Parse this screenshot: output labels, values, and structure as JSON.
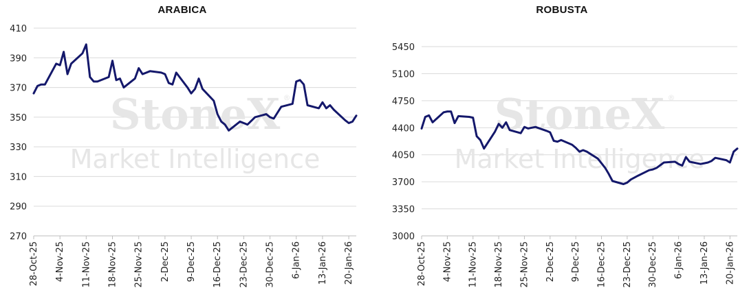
{
  "watermark": {
    "brand": "StoneX",
    "registered": "®",
    "tagline": "Market Intelligence"
  },
  "chart_data": [
    {
      "type": "line",
      "title": "ARABICA",
      "xlabel": "",
      "ylabel": "",
      "ylim": [
        270,
        410
      ],
      "yticks": [
        270,
        290,
        310,
        330,
        350,
        370,
        390,
        410
      ],
      "grid": true,
      "line_color": "#14186b",
      "xtick_labels": [
        "28-Oct-25",
        "4-Nov-25",
        "11-Nov-25",
        "18-Nov-25",
        "25-Nov-25",
        "2-Dec-25",
        "9-Dec-25",
        "16-Dec-25",
        "23-Dec-25",
        "30-Dec-25",
        "6-Jan-26",
        "13-Jan-26",
        "20-Jan-26"
      ],
      "series": [
        {
          "x": [
            "2025-10-28",
            "2025-10-29",
            "2025-10-30",
            "2025-10-31",
            "2025-11-03",
            "2025-11-04",
            "2025-11-05",
            "2025-11-06",
            "2025-11-07",
            "2025-11-10",
            "2025-11-11",
            "2025-11-12",
            "2025-11-13",
            "2025-11-14",
            "2025-11-17",
            "2025-11-18",
            "2025-11-19",
            "2025-11-20",
            "2025-11-21",
            "2025-11-24",
            "2025-11-25",
            "2025-11-26",
            "2025-11-28",
            "2025-12-01",
            "2025-12-02",
            "2025-12-03",
            "2025-12-04",
            "2025-12-05",
            "2025-12-08",
            "2025-12-09",
            "2025-12-10",
            "2025-12-11",
            "2025-12-12",
            "2025-12-15",
            "2025-12-16",
            "2025-12-17",
            "2025-12-18",
            "2025-12-19",
            "2025-12-22",
            "2025-12-23",
            "2025-12-24",
            "2025-12-26",
            "2025-12-29",
            "2025-12-30",
            "2025-12-31",
            "2026-01-02",
            "2026-01-05",
            "2026-01-06",
            "2026-01-07",
            "2026-01-08",
            "2026-01-09",
            "2026-01-12",
            "2026-01-13",
            "2026-01-14",
            "2026-01-15",
            "2026-01-16",
            "2026-01-19",
            "2026-01-20",
            "2026-01-21",
            "2026-01-22"
          ],
          "values": [
            366,
            371,
            372,
            372,
            386,
            385,
            394,
            379,
            386,
            393,
            399,
            377,
            374,
            374,
            377,
            388,
            375,
            376,
            370,
            376,
            383,
            379,
            381,
            380,
            379,
            373,
            372,
            380,
            370,
            366,
            369,
            376,
            369,
            361,
            352,
            347,
            345,
            341,
            347,
            346,
            345,
            350,
            352,
            350,
            349,
            357,
            359,
            374,
            375,
            372,
            358,
            356,
            360,
            356,
            358,
            355,
            348,
            346,
            347,
            351
          ]
        }
      ]
    },
    {
      "type": "line",
      "title": "ROBUSTA",
      "xlabel": "",
      "ylabel": "",
      "ylim": [
        3000,
        5450
      ],
      "yticks": [
        3000,
        3350,
        3700,
        4050,
        4400,
        4750,
        5100,
        5450
      ],
      "grid": true,
      "line_color": "#14186b",
      "xtick_labels": [
        "28-Oct-25",
        "4-Nov-25",
        "11-Nov-25",
        "18-Nov-25",
        "25-Nov-25",
        "2-Dec-25",
        "9-Dec-25",
        "16-Dec-25",
        "23-Dec-25",
        "30-Dec-25",
        "6-Jan-26",
        "13-Jan-26",
        "20-Jan-26"
      ],
      "series": [
        {
          "x": [
            "2025-10-28",
            "2025-10-29",
            "2025-10-30",
            "2025-10-31",
            "2025-11-03",
            "2025-11-04",
            "2025-11-05",
            "2025-11-06",
            "2025-11-07",
            "2025-11-10",
            "2025-11-11",
            "2025-11-12",
            "2025-11-13",
            "2025-11-14",
            "2025-11-17",
            "2025-11-18",
            "2025-11-19",
            "2025-11-20",
            "2025-11-21",
            "2025-11-24",
            "2025-11-25",
            "2025-11-26",
            "2025-11-27",
            "2025-11-28",
            "2025-12-01",
            "2025-12-02",
            "2025-12-03",
            "2025-12-04",
            "2025-12-05",
            "2025-12-08",
            "2025-12-09",
            "2025-12-10",
            "2025-12-11",
            "2025-12-12",
            "2025-12-15",
            "2025-12-16",
            "2025-12-17",
            "2025-12-18",
            "2025-12-19",
            "2025-12-22",
            "2025-12-23",
            "2025-12-24",
            "2025-12-26",
            "2025-12-29",
            "2025-12-30",
            "2025-12-31",
            "2026-01-02",
            "2026-01-05",
            "2026-01-06",
            "2026-01-07",
            "2026-01-08",
            "2026-01-09",
            "2026-01-12",
            "2026-01-13",
            "2026-01-14",
            "2026-01-15",
            "2026-01-16",
            "2026-01-19",
            "2026-01-20",
            "2026-01-21",
            "2026-01-22"
          ],
          "values": [
            4390,
            4540,
            4560,
            4470,
            4600,
            4610,
            4610,
            4460,
            4550,
            4540,
            4530,
            4290,
            4240,
            4130,
            4350,
            4450,
            4400,
            4470,
            4370,
            4330,
            4410,
            4390,
            4400,
            4410,
            4360,
            4340,
            4230,
            4220,
            4240,
            4180,
            4140,
            4090,
            4110,
            4090,
            4000,
            3940,
            3880,
            3800,
            3710,
            3670,
            3690,
            3730,
            3780,
            3850,
            3860,
            3880,
            3950,
            3960,
            3930,
            3910,
            4020,
            3960,
            3930,
            3940,
            3950,
            3970,
            4010,
            3980,
            3950,
            4090,
            4130
          ]
        }
      ]
    }
  ]
}
